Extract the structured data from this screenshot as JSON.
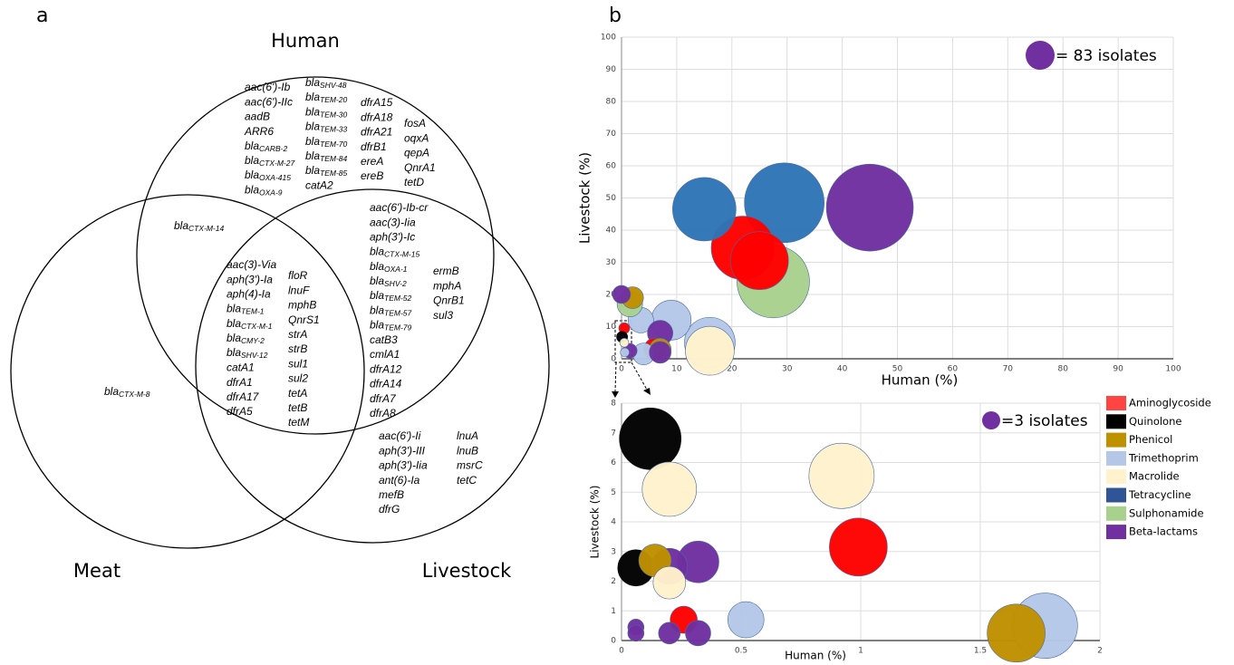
{
  "chart_data": [
    {
      "type": "venn",
      "panel": "a",
      "sets": [
        "Human",
        "Meat",
        "Livestock"
      ],
      "regions": [
        [
          [
            "aac(6')-Ib",
            "aac(6')-IIc",
            "aadB",
            "ARR6",
            [
              "bla",
              "CARB-2"
            ],
            [
              "bla",
              "CTX-M-27"
            ],
            [
              "bla",
              "OXA-415"
            ],
            [
              "bla",
              "OXA-9"
            ]
          ],
          [
            [
              "bla",
              "SHV-48"
            ],
            [
              "bla",
              "TEM-20"
            ],
            [
              "bla",
              "TEM-30"
            ],
            [
              "bla",
              "TEM-33"
            ],
            [
              "bla",
              "TEM-70"
            ],
            [
              "bla",
              "TEM-84"
            ],
            [
              "bla",
              "TEM-85"
            ],
            "catA2"
          ],
          [
            "dfrA15",
            "dfrA18",
            "dfrA21",
            "dfrB1",
            "ereA",
            "ereB"
          ],
          [
            "fosA",
            "oqxA",
            "qepA",
            "QnrA1",
            "tetD"
          ]
        ],
        [
          [
            [
              "bla",
              "CTX-M-14"
            ]
          ]
        ],
        [
          [
            "aac(3)-Via",
            "aph(3')-Ia",
            "aph(4)-Ia",
            [
              "bla",
              "TEM-1"
            ],
            [
              "bla",
              "CTX-M-1"
            ],
            [
              "bla",
              "CMY-2"
            ],
            [
              "bla",
              "SHV-12"
            ],
            "catA1",
            "dfrA1",
            "dfrA17",
            "dfrA5"
          ],
          [
            "floR",
            "lnuF",
            "mphB",
            "QnrS1",
            "strA",
            "strB",
            "sul1",
            "sul2",
            "tetA",
            "tetB",
            "tetM"
          ]
        ],
        [
          [
            "aac(6')-Ib-cr",
            "aac(3)-Iia",
            "aph(3')-Ic",
            [
              "bla",
              "CTX-M-15"
            ],
            [
              "bla",
              "OXA-1"
            ],
            [
              "bla",
              "SHV-2"
            ],
            [
              "bla",
              "TEM-52"
            ],
            [
              "bla",
              "TEM-57"
            ],
            [
              "bla",
              "TEM-79"
            ],
            "catB3",
            "cmlA1",
            "dfrA12",
            "dfrA14",
            "dfrA7",
            "dfrA8"
          ],
          [
            "ermB",
            "mphA",
            "QnrB1",
            "sul3"
          ]
        ],
        [
          [
            [
              "bla",
              "CTX-M-8"
            ]
          ]
        ],
        [
          [
            "aac(6')-Ii",
            "aph(3')-III",
            "aph(3')-Iia",
            "ant(6)-Ia",
            "mefB",
            "dfrG"
          ],
          [
            "lnuA",
            "lnuB",
            "msrC",
            "tetC"
          ]
        ]
      ]
    },
    {
      "type": "bubble",
      "panel": "b",
      "xlabel": "Human (%)",
      "ylabel": "Livestock (%)",
      "xlim": [
        0,
        100
      ],
      "ylim": [
        0,
        100
      ],
      "xticks": [
        0,
        10,
        20,
        30,
        40,
        50,
        60,
        70,
        80,
        90,
        100
      ],
      "yticks": [
        0,
        10,
        20,
        30,
        40,
        50,
        60,
        70,
        80,
        90,
        100
      ],
      "grid": true,
      "size_key": {
        "size": 83,
        "label": "= 83 isolates",
        "color": "#7030a0"
      },
      "series": [
        {
          "color": "#ff0000",
          "x": [
            22,
            25,
            6,
            0.5
          ],
          "values": [
            34.5,
            30.5,
            3,
            9.5
          ],
          "sizes": [
            397,
            332,
            47,
            12
          ]
        },
        {
          "color": "#000000",
          "x": [
            0.1
          ],
          "values": [
            6.8
          ],
          "sizes": [
            12
          ]
        },
        {
          "color": "#bf9000",
          "x": [
            2,
            7
          ],
          "values": [
            19,
            3
          ],
          "sizes": [
            47,
            47
          ]
        },
        {
          "color": "#b4c7e7",
          "x": [
            16,
            9,
            3.5,
            4,
            0.6
          ],
          "values": [
            5,
            12,
            12,
            1.5,
            2
          ],
          "sizes": [
            254,
            157,
            64,
            47,
            8
          ]
        },
        {
          "color": "#fff2cc",
          "x": [
            16,
            0.5
          ],
          "values": [
            2.5,
            5
          ],
          "sizes": [
            236,
            8
          ]
        },
        {
          "color": "#2e75b6",
          "x": [
            29.5,
            15
          ],
          "values": [
            48.5,
            46.5
          ],
          "sizes": [
            628,
            397
          ]
        },
        {
          "color": "#a9d18e",
          "x": [
            27.5,
            1.5
          ],
          "values": [
            24,
            17
          ],
          "sizes": [
            519,
            64
          ]
        },
        {
          "color": "#7030a0",
          "x": [
            45,
            0,
            7,
            7,
            1.5
          ],
          "values": [
            47,
            20,
            8,
            2,
            2.5
          ],
          "sizes": [
            747,
            32,
            64,
            47,
            21
          ]
        }
      ]
    },
    {
      "type": "bubble",
      "panel": "b-inset",
      "xlabel": "Human (%)",
      "ylabel": "Livestock (%)",
      "xlim": [
        0,
        2
      ],
      "ylim": [
        0,
        8
      ],
      "xticks": [
        0,
        0.5,
        1,
        1.5,
        2
      ],
      "yticks": [
        0,
        1,
        2,
        3,
        4,
        5,
        6,
        7,
        8
      ],
      "grid": true,
      "size_key": {
        "size": 3,
        "label": "=3 isolates",
        "color": "#7030a0"
      },
      "legend": "right",
      "series": [
        {
          "name": "Aminoglycoside",
          "color": "#ff0000",
          "legend_color": "#ff4444",
          "x": [
            0.99,
            0.26
          ],
          "values": [
            3.15,
            0.7
          ],
          "sizes": [
            30.7,
            6.75
          ]
        },
        {
          "name": "Quinolone",
          "color": "#000000",
          "legend_color": "#000000",
          "x": [
            0.12,
            0.06
          ],
          "values": [
            6.8,
            2.45
          ],
          "sizes": [
            34.7,
            12
          ]
        },
        {
          "name": "Phenicol",
          "color": "#bf9000",
          "legend_color": "#bf9000",
          "x": [
            0.14,
            1.65
          ],
          "values": [
            2.7,
            0.25
          ],
          "sizes": [
            9.7,
            30.7
          ]
        },
        {
          "name": "Trimethoprim",
          "color": "#b4c7e7",
          "legend_color": "#b4c7e7",
          "x": [
            0.52,
            1.77
          ],
          "values": [
            0.7,
            0.5
          ],
          "sizes": [
            12,
            39
          ]
        },
        {
          "name": "Macrolide",
          "color": "#fff2cc",
          "legend_color": "#fff2cc",
          "x": [
            0.2,
            0.92,
            0.2
          ],
          "values": [
            5.1,
            5.55,
            1.95
          ],
          "sizes": [
            27,
            39,
            9.7
          ]
        },
        {
          "name": "Tetracycline",
          "color": "#2e75b6",
          "legend_color": "#2f5597",
          "x": [],
          "values": [],
          "sizes": []
        },
        {
          "name": "Sulphonamide",
          "color": "#a9d18e",
          "legend_color": "#a9d18e",
          "x": [],
          "values": [],
          "sizes": []
        },
        {
          "name": "Beta-lactams",
          "color": "#7030a0",
          "legend_color": "#7030a0",
          "x": [
            0.32,
            0.2,
            0.06,
            0.06,
            0.2,
            0.32
          ],
          "values": [
            2.65,
            2.5,
            0.45,
            0.25,
            0.25,
            0.25
          ],
          "sizes": [
            15.9,
            12,
            2.4,
            2.4,
            4.3,
            5.9
          ]
        }
      ]
    }
  ]
}
